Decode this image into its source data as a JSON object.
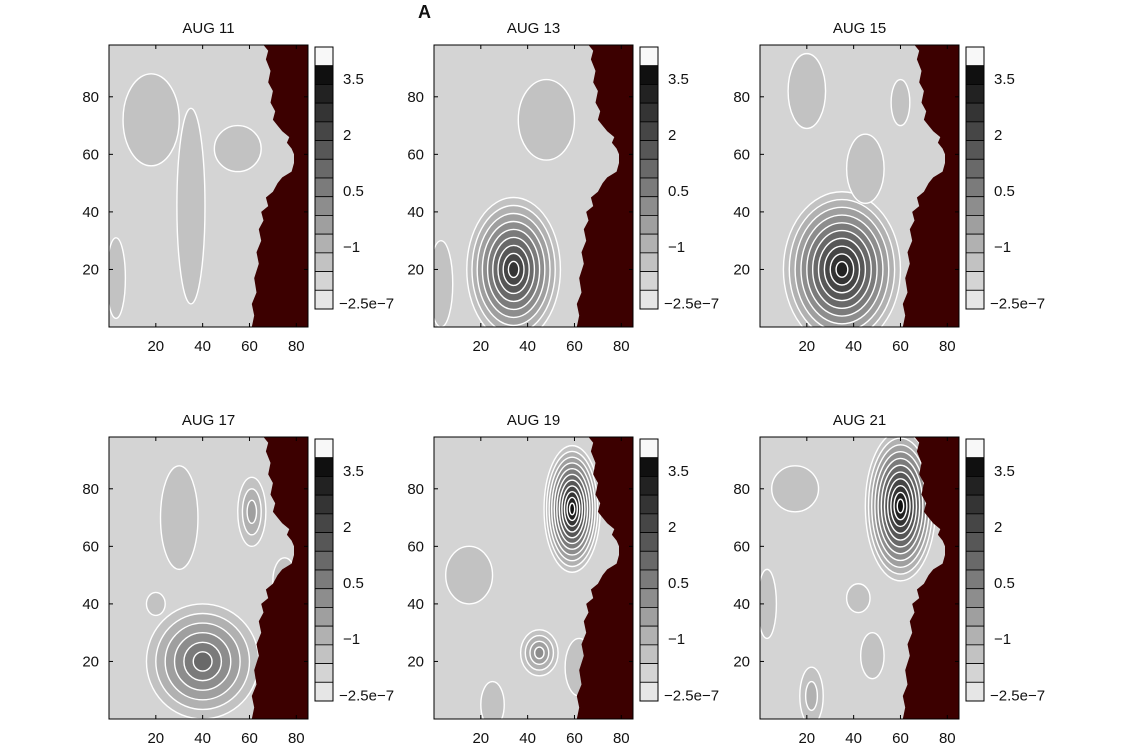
{
  "figure_label": "A",
  "chart_data": [
    {
      "type": "heatmap",
      "title": "AUG 11",
      "x_ticks": [
        20,
        40,
        60,
        80
      ],
      "y_ticks": [
        20,
        40,
        60,
        80
      ],
      "xlim": [
        0,
        85
      ],
      "ylim": [
        0,
        98
      ],
      "colorbar": {
        "tick_labels": [
          "3.5",
          "2",
          "0.5",
          "−1",
          "−2.5e−7"
        ],
        "levels": 14
      },
      "land_color": "#3c0000",
      "background_level": 2,
      "features": [
        {
          "x": 35,
          "y": 42,
          "rx": 6,
          "ry": 34,
          "level": 3
        },
        {
          "x": 3,
          "y": 17,
          "rx": 4,
          "ry": 14,
          "level": 1
        },
        {
          "x": 55,
          "y": 62,
          "rx": 10,
          "ry": 8,
          "level": 1
        },
        {
          "x": 18,
          "y": 72,
          "rx": 12,
          "ry": 16,
          "level": 1
        }
      ]
    },
    {
      "type": "heatmap",
      "title": "AUG 13",
      "x_ticks": [
        20,
        40,
        60,
        80
      ],
      "y_ticks": [
        20,
        40,
        60,
        80
      ],
      "xlim": [
        0,
        85
      ],
      "ylim": [
        0,
        98
      ],
      "colorbar": {
        "tick_labels": [
          "3.5",
          "2",
          "0.5",
          "−1",
          "−2.5e−7"
        ],
        "levels": 14
      },
      "land_color": "#3c0000",
      "background_level": 2,
      "features": [
        {
          "x": 34,
          "y": 20,
          "rx": 20,
          "ry": 25,
          "level": 11
        },
        {
          "x": 3,
          "y": 15,
          "rx": 5,
          "ry": 15,
          "level": 1
        },
        {
          "x": 48,
          "y": 72,
          "rx": 12,
          "ry": 14,
          "level": 1
        }
      ]
    },
    {
      "type": "heatmap",
      "title": "AUG 15",
      "x_ticks": [
        20,
        40,
        60,
        80
      ],
      "y_ticks": [
        20,
        40,
        60,
        80
      ],
      "xlim": [
        0,
        85
      ],
      "ylim": [
        0,
        98
      ],
      "colorbar": {
        "tick_labels": [
          "3.5",
          "2",
          "0.5",
          "−1",
          "−2.5e−7"
        ],
        "levels": 14
      },
      "land_color": "#3c0000",
      "background_level": 2,
      "features": [
        {
          "x": 35,
          "y": 20,
          "rx": 25,
          "ry": 27,
          "level": 12
        },
        {
          "x": 20,
          "y": 82,
          "rx": 8,
          "ry": 13,
          "level": 3
        },
        {
          "x": 60,
          "y": 78,
          "rx": 4,
          "ry": 8,
          "level": 3
        },
        {
          "x": 45,
          "y": 55,
          "rx": 8,
          "ry": 12,
          "level": 1
        }
      ]
    },
    {
      "type": "heatmap",
      "title": "AUG 17",
      "x_ticks": [
        20,
        40,
        60,
        80
      ],
      "y_ticks": [
        20,
        40,
        60,
        80
      ],
      "xlim": [
        0,
        85
      ],
      "ylim": [
        0,
        98
      ],
      "colorbar": {
        "tick_labels": [
          "3.5",
          "2",
          "0.5",
          "−1",
          "−2.5e−7"
        ],
        "levels": 14
      },
      "land_color": "#3c0000",
      "background_level": 2,
      "features": [
        {
          "x": 40,
          "y": 20,
          "rx": 24,
          "ry": 20,
          "level": 8
        },
        {
          "x": 61,
          "y": 72,
          "rx": 6,
          "ry": 12,
          "level": 5
        },
        {
          "x": 30,
          "y": 70,
          "rx": 8,
          "ry": 18,
          "level": 3
        },
        {
          "x": 20,
          "y": 40,
          "rx": 4,
          "ry": 4,
          "level": 1
        },
        {
          "x": 75,
          "y": 48,
          "rx": 5,
          "ry": 8,
          "level": 1
        }
      ]
    },
    {
      "type": "heatmap",
      "title": "AUG 19",
      "x_ticks": [
        20,
        40,
        60,
        80
      ],
      "y_ticks": [
        20,
        40,
        60,
        80
      ],
      "xlim": [
        0,
        85
      ],
      "ylim": [
        0,
        98
      ],
      "colorbar": {
        "tick_labels": [
          "3.5",
          "2",
          "0.5",
          "−1",
          "−2.5e−7"
        ],
        "levels": 14
      },
      "land_color": "#3c0000",
      "background_level": 2,
      "features": [
        {
          "x": 59,
          "y": 73,
          "rx": 12,
          "ry": 22,
          "level": 13
        },
        {
          "x": 45,
          "y": 23,
          "rx": 8,
          "ry": 8,
          "level": 6
        },
        {
          "x": 25,
          "y": 5,
          "rx": 5,
          "ry": 8,
          "level": 3
        },
        {
          "x": 62,
          "y": 18,
          "rx": 6,
          "ry": 10,
          "level": 3
        },
        {
          "x": 15,
          "y": 50,
          "rx": 10,
          "ry": 10,
          "level": 1
        }
      ]
    },
    {
      "type": "heatmap",
      "title": "AUG 21",
      "x_ticks": [
        20,
        40,
        60,
        80
      ],
      "y_ticks": [
        20,
        40,
        60,
        80
      ],
      "xlim": [
        0,
        85
      ],
      "ylim": [
        0,
        98
      ],
      "colorbar": {
        "tick_labels": [
          "3.5",
          "2",
          "0.5",
          "−1",
          "−2.5e−7"
        ],
        "levels": 14
      },
      "land_color": "#3c0000",
      "background_level": 2,
      "features": [
        {
          "x": 60,
          "y": 74,
          "rx": 15,
          "ry": 26,
          "level": 13
        },
        {
          "x": 22,
          "y": 8,
          "rx": 5,
          "ry": 10,
          "level": 4
        },
        {
          "x": 48,
          "y": 22,
          "rx": 5,
          "ry": 8,
          "level": 3
        },
        {
          "x": 42,
          "y": 42,
          "rx": 5,
          "ry": 5,
          "level": 1
        },
        {
          "x": 3,
          "y": 40,
          "rx": 4,
          "ry": 12,
          "level": 1
        },
        {
          "x": 15,
          "y": 80,
          "rx": 10,
          "ry": 8,
          "level": 1
        }
      ]
    }
  ]
}
